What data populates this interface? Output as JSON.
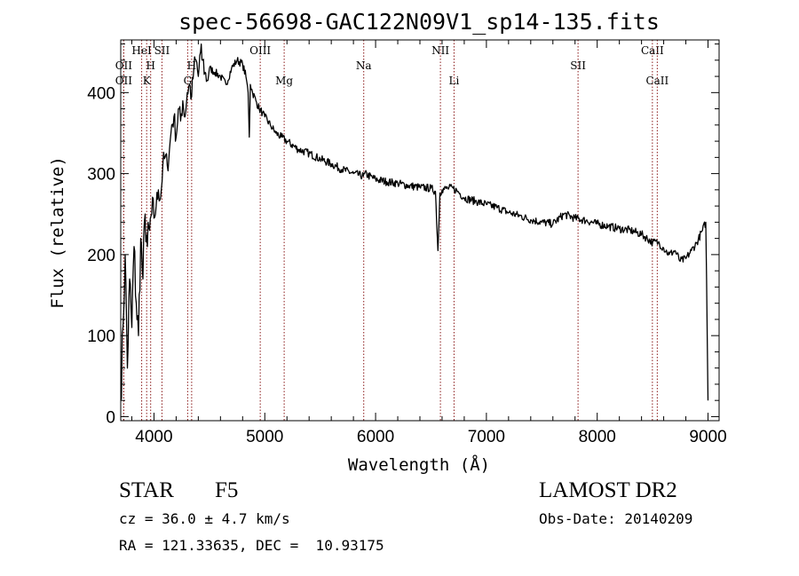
{
  "title": "spec-56698-GAC122N09V1_sp14-135.fits",
  "info": {
    "class_label": "STAR",
    "subclass_label": "F5",
    "survey": "LAMOST DR2",
    "cz": "cz = 36.0 ± 4.7 km/s",
    "obs_date": "Obs-Date: 20140209",
    "radec": "RA = 121.33635, DEC =  10.93175"
  },
  "chart_data": {
    "type": "line",
    "title": "spec-56698-GAC122N09V1_sp14-135.fits",
    "xlabel": "Wavelength (Å)",
    "ylabel": "Flux (relative)",
    "xlim": [
      3700,
      9100
    ],
    "ylim": [
      -5,
      465
    ],
    "xticks": [
      4000,
      5000,
      6000,
      7000,
      8000,
      9000
    ],
    "yticks": [
      0,
      100,
      200,
      300,
      400
    ],
    "grid": false,
    "line_color": "#000000",
    "marker_color": "#8b1a1a",
    "series": [
      {
        "x": [
          3700,
          3720,
          3740,
          3760,
          3780,
          3800,
          3820,
          3840,
          3860,
          3880,
          3900,
          3920,
          3940,
          3960,
          3980,
          4000,
          4020,
          4040,
          4060,
          4080,
          4100,
          4120,
          4140,
          4160,
          4180,
          4200,
          4220,
          4240,
          4260,
          4280,
          4300,
          4320,
          4340,
          4360,
          4380,
          4400,
          4420,
          4440,
          4460,
          4480,
          4500,
          4550,
          4600,
          4650,
          4700,
          4750,
          4800,
          4830,
          4850,
          4860,
          4870,
          4890,
          4920,
          4950,
          4980,
          5000,
          5050,
          5100,
          5150,
          5200,
          5300,
          5400,
          5500,
          5600,
          5700,
          5800,
          5890,
          5900,
          6000,
          6100,
          6200,
          6300,
          6400,
          6500,
          6540,
          6563,
          6580,
          6600,
          6650,
          6700,
          6750,
          6800,
          6900,
          7000,
          7100,
          7200,
          7300,
          7400,
          7500,
          7600,
          7700,
          7800,
          7900,
          8000,
          8100,
          8200,
          8300,
          8400,
          8500,
          8550,
          8600,
          8650,
          8700,
          8750,
          8800,
          8850,
          8900,
          8950,
          8980,
          9000
        ],
        "y": [
          20,
          110,
          200,
          60,
          170,
          110,
          210,
          140,
          100,
          220,
          170,
          250,
          210,
          230,
          250,
          245,
          260,
          280,
          270,
          310,
          320,
          310,
          330,
          360,
          370,
          345,
          380,
          365,
          390,
          370,
          400,
          410,
          395,
          430,
          440,
          420,
          450,
          440,
          425,
          415,
          430,
          425,
          420,
          410,
          430,
          440,
          435,
          420,
          400,
          345,
          410,
          400,
          390,
          380,
          375,
          370,
          360,
          350,
          345,
          340,
          330,
          325,
          318,
          312,
          305,
          300,
          297,
          300,
          293,
          290,
          288,
          285,
          283,
          282,
          278,
          205,
          276,
          280,
          282,
          282,
          277,
          270,
          266,
          262,
          258,
          252,
          248,
          243,
          240,
          238,
          250,
          245,
          242,
          238,
          235,
          232,
          230,
          225,
          215,
          215,
          208,
          200,
          205,
          192,
          195,
          205,
          215,
          230,
          240,
          20
        ]
      }
    ],
    "line_markers": [
      {
        "wl": 3727,
        "label": "OII",
        "row": "upper"
      },
      {
        "wl": 3727,
        "label": "OII",
        "row": "lower"
      },
      {
        "wl": 3889,
        "label": "HeI",
        "row": "top"
      },
      {
        "wl": 3934,
        "label": "K",
        "row": "lower"
      },
      {
        "wl": 3970,
        "label": "H",
        "row": "upper"
      },
      {
        "wl": 4072,
        "label": "SII",
        "row": "top"
      },
      {
        "wl": 4304,
        "label": "G",
        "row": "lower"
      },
      {
        "wl": 4340,
        "label": "H",
        "row": "upper"
      },
      {
        "wl": 4959,
        "label": "OIII",
        "row": "top"
      },
      {
        "wl": 5175,
        "label": "Mg",
        "row": "lower"
      },
      {
        "wl": 5893,
        "label": "Na",
        "row": "upper"
      },
      {
        "wl": 6585,
        "label": "NII",
        "row": "top"
      },
      {
        "wl": 6708,
        "label": "Li",
        "row": "lower"
      },
      {
        "wl": 7827,
        "label": "SII",
        "row": "upper"
      },
      {
        "wl": 8498,
        "label": "CaII",
        "row": "top"
      },
      {
        "wl": 8542,
        "label": "CaII",
        "row": "lower"
      }
    ]
  }
}
